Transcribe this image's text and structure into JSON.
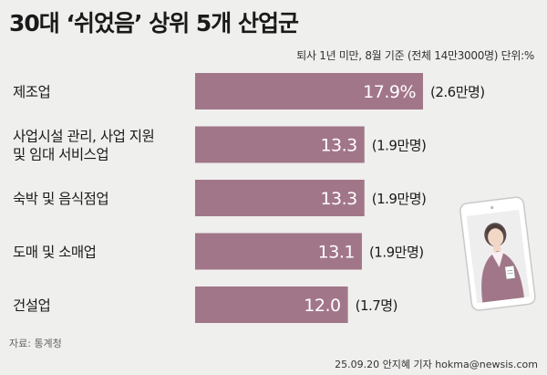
{
  "title": "30대 ‘쉬었음’ 상위 5개 산업군",
  "subtitle": "퇴사 1년 미만, 8월 기준 (전체 14만3000명) 단위:%",
  "source": "자료: 통계청",
  "credit": "25.09.20 안지혜 기자 hokma@newsis.com",
  "colors": {
    "bar": "#a27689",
    "background": "#efefed"
  },
  "chart_data": {
    "type": "bar",
    "orientation": "horizontal",
    "categories": [
      [
        "제조업"
      ],
      [
        "사업시설 관리, 사업 지원",
        "및 임대 서비스업"
      ],
      [
        "숙박 및 음식점업"
      ],
      [
        "도매 및 소매업"
      ],
      [
        "건설업"
      ]
    ],
    "values": [
      17.9,
      13.3,
      13.3,
      13.1,
      12.0
    ],
    "value_labels": [
      "17.9%",
      "13.3",
      "13.3",
      "13.1",
      "12.0"
    ],
    "annotations": [
      "(2.6만명)",
      "(1.9만명)",
      "(1.9만명)",
      "(1.9만명)",
      "(1.7명)"
    ],
    "xlim": [
      0,
      17.9
    ]
  }
}
